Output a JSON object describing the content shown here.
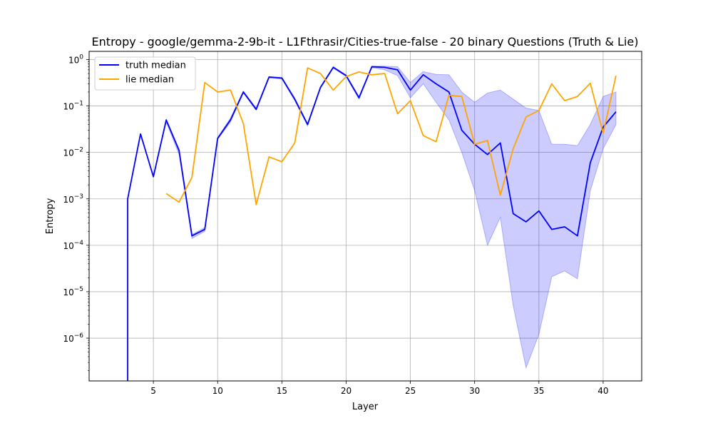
{
  "chart_data": {
    "type": "line",
    "title": "Entropy - google/gemma-2-9b-it - L1Fthrasir/Cities-true-false - 20 binary Questions (Truth & Lie)",
    "xlabel": "Layer",
    "ylabel": "Entropy",
    "y_scale": "log",
    "xlim": [
      0,
      43
    ],
    "ylim": [
      1.2e-07,
      1.5
    ],
    "x_ticks": [
      5,
      10,
      15,
      20,
      25,
      30,
      35,
      40
    ],
    "y_ticks": [
      {
        "value": 1e-06,
        "base": "10",
        "exp": "−6"
      },
      {
        "value": 1e-05,
        "base": "10",
        "exp": "−5"
      },
      {
        "value": 0.0001,
        "base": "10",
        "exp": "−4"
      },
      {
        "value": 0.001,
        "base": "10",
        "exp": "−3"
      },
      {
        "value": 0.01,
        "base": "10",
        "exp": "−2"
      },
      {
        "value": 0.1,
        "base": "10",
        "exp": "−1"
      },
      {
        "value": 1,
        "base": "10",
        "exp": "0"
      }
    ],
    "grid": true,
    "legend_position": "top-left",
    "series": [
      {
        "name": "truth median",
        "color": "#0000ff",
        "x": [
          3,
          4,
          5,
          6,
          7,
          8,
          9,
          10,
          11,
          12,
          13,
          14,
          15,
          16,
          17,
          18,
          19,
          20,
          21,
          22,
          23,
          24,
          25,
          26,
          27,
          28,
          29,
          30,
          31,
          32,
          33,
          34,
          35,
          36,
          37,
          38,
          39,
          40,
          41
        ],
        "values": [
          0.001,
          0.025,
          0.003,
          0.05,
          0.011,
          0.00016,
          0.00022,
          0.02,
          0.05,
          0.2,
          0.085,
          0.42,
          0.4,
          0.14,
          0.04,
          0.25,
          0.68,
          0.45,
          0.15,
          0.7,
          0.68,
          0.6,
          0.22,
          0.47,
          0.3,
          0.2,
          0.03,
          0.015,
          0.009,
          0.016,
          0.00048,
          0.00032,
          0.00055,
          0.00022,
          0.00025,
          0.00016,
          0.006,
          0.035,
          0.075
        ],
        "band_low": [
          0.001,
          0.025,
          0.003,
          0.045,
          0.009,
          0.00014,
          0.0002,
          0.019,
          0.045,
          0.19,
          0.08,
          0.4,
          0.38,
          0.13,
          0.037,
          0.24,
          0.65,
          0.43,
          0.14,
          0.67,
          0.6,
          0.45,
          0.15,
          0.3,
          0.12,
          0.05,
          0.01,
          0.0015,
          0.0001,
          0.0004,
          5e-06,
          2.3e-07,
          1.2e-06,
          2.1e-05,
          2.8e-05,
          1.9e-05,
          0.0015,
          0.012,
          0.04
        ],
        "band_high": [
          0.001,
          0.025,
          0.003,
          0.05,
          0.012,
          0.00017,
          0.00024,
          0.021,
          0.055,
          0.21,
          0.09,
          0.43,
          0.41,
          0.15,
          0.042,
          0.26,
          0.7,
          0.47,
          0.16,
          0.72,
          0.72,
          0.7,
          0.32,
          0.55,
          0.48,
          0.47,
          0.2,
          0.12,
          0.19,
          0.22,
          0.14,
          0.09,
          0.08,
          0.015,
          0.015,
          0.014,
          0.04,
          0.16,
          0.2
        ]
      },
      {
        "name": "lie median",
        "color": "#ffa500",
        "x": [
          6,
          7,
          8,
          9,
          10,
          11,
          12,
          13,
          14,
          15,
          16,
          17,
          18,
          19,
          20,
          21,
          22,
          23,
          24,
          25,
          26,
          27,
          28,
          29,
          30,
          31,
          32,
          33,
          34,
          35,
          36,
          37,
          38,
          39,
          40,
          41
        ],
        "values": [
          0.0013,
          0.00085,
          0.0029,
          0.32,
          0.2,
          0.22,
          0.042,
          0.00075,
          0.008,
          0.0063,
          0.016,
          0.66,
          0.5,
          0.22,
          0.43,
          0.54,
          0.47,
          0.5,
          0.068,
          0.13,
          0.023,
          0.017,
          0.17,
          0.16,
          0.015,
          0.018,
          0.0012,
          0.012,
          0.058,
          0.08,
          0.3,
          0.13,
          0.16,
          0.31,
          0.026,
          0.45
        ]
      }
    ]
  }
}
